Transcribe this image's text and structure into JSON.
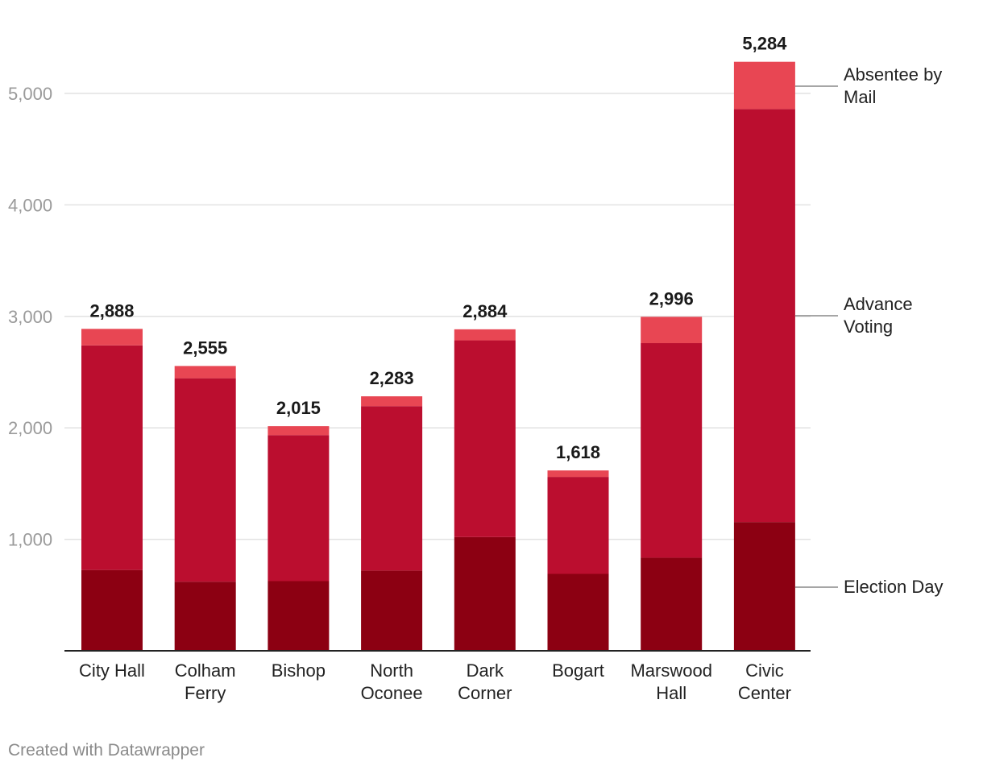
{
  "chart_data": {
    "type": "bar",
    "stacked": true,
    "title": "",
    "xlabel": "",
    "ylabel": "",
    "ylim": [
      0,
      5500
    ],
    "yticks": [
      1000,
      2000,
      3000,
      4000,
      5000
    ],
    "ytick_labels": [
      "1,000",
      "2,000",
      "3,000",
      "4,000",
      "5,000"
    ],
    "grid": true,
    "categories": [
      [
        "City Hall"
      ],
      [
        "Colham",
        "Ferry"
      ],
      [
        "Bishop"
      ],
      [
        "North",
        "Oconee"
      ],
      [
        "Dark",
        "Corner"
      ],
      [
        "Bogart"
      ],
      [
        "Marswood",
        "Hall"
      ],
      [
        "Civic",
        "Center"
      ]
    ],
    "series": [
      {
        "name": "Election Day",
        "label_lines": [
          "Election Day"
        ],
        "color": "#8c0012",
        "values": [
          725,
          620,
          625,
          720,
          1020,
          690,
          835,
          1155
        ]
      },
      {
        "name": "Advance Voting",
        "label_lines": [
          "Advance",
          "Voting"
        ],
        "color": "#bb0e2f",
        "values": [
          2015,
          1825,
          1310,
          1475,
          1765,
          870,
          1925,
          3705
        ]
      },
      {
        "name": "Absentee by Mail",
        "label_lines": [
          "Absentee by",
          "Mail"
        ],
        "color": "#e84653",
        "values": [
          148,
          110,
          80,
          88,
          99,
          58,
          236,
          424
        ]
      }
    ],
    "totals": [
      2888,
      2555,
      2015,
      2283,
      2884,
      1618,
      2996,
      5284
    ],
    "total_labels": [
      "2,888",
      "2,555",
      "2,015",
      "2,283",
      "2,884",
      "1,618",
      "2,996",
      "5,284"
    ],
    "legend_placement": "right"
  },
  "credit": "Created with Datawrapper"
}
